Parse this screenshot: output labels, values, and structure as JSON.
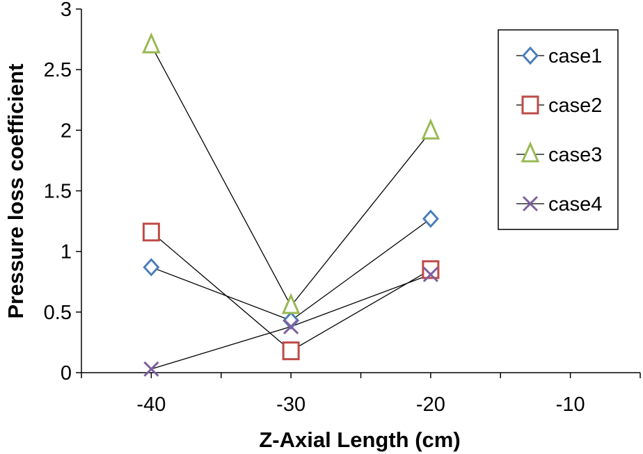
{
  "chart_data": {
    "type": "line",
    "xlabel": "Z-Axial Length (cm)",
    "ylabel": "Pressure loss coefficient",
    "xlim": [
      -45,
      -5
    ],
    "ylim": [
      0,
      3
    ],
    "x_ticks": [
      -40,
      -30,
      -20,
      -10
    ],
    "y_ticks": [
      0,
      0.5,
      1,
      1.5,
      2,
      2.5,
      3
    ],
    "x_tick_labels": [
      "-40",
      "-30",
      "-20",
      "-10"
    ],
    "y_tick_labels": [
      "0",
      "0.5",
      "1",
      "1.5",
      "2",
      "2.5",
      "3"
    ],
    "grid": false,
    "legend_position": "top-right",
    "line_color": "#000000",
    "series": [
      {
        "name": "case1",
        "marker": "diamond",
        "color": "#4A7EBB",
        "x": [
          -40,
          -30,
          -20
        ],
        "y": [
          0.87,
          0.43,
          1.27
        ]
      },
      {
        "name": "case2",
        "marker": "square",
        "color": "#BE4B48",
        "x": [
          -40,
          -30,
          -20
        ],
        "y": [
          1.16,
          0.18,
          0.85
        ]
      },
      {
        "name": "case3",
        "marker": "triangle",
        "color": "#98B954",
        "x": [
          -40,
          -30,
          -20
        ],
        "y": [
          2.7,
          0.55,
          1.99
        ]
      },
      {
        "name": "case4",
        "marker": "x",
        "color": "#7D60A0",
        "x": [
          -40,
          -30,
          -20
        ],
        "y": [
          0.03,
          0.38,
          0.81
        ]
      }
    ]
  }
}
